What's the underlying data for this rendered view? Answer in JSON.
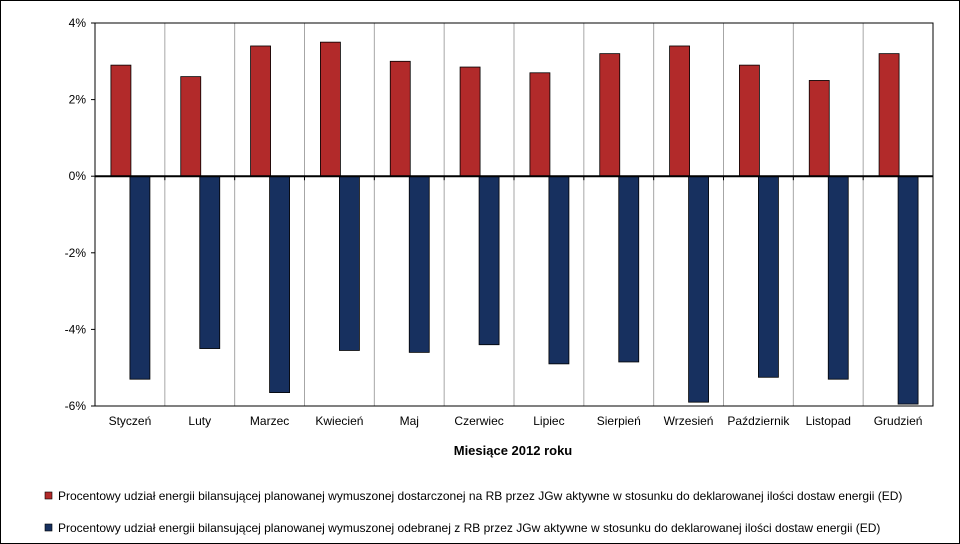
{
  "chart_data": {
    "type": "bar",
    "xlabel": "Miesiące 2012 roku",
    "ylabel": "",
    "ylim": [
      -0.06,
      0.04
    ],
    "yticks": [
      "4%",
      "2%",
      "0%",
      "-2%",
      "-4%",
      "-6%"
    ],
    "grid": "vertical",
    "legend_position": "bottom",
    "categories": [
      "Styczeń",
      "Luty",
      "Marzec",
      "Kwiecień",
      "Maj",
      "Czerwiec",
      "Lipiec",
      "Sierpień",
      "Wrzesień",
      "Październik",
      "Listopad",
      "Grudzień"
    ],
    "series": [
      {
        "name": "Procentowy udział energii bilansującej planowanej wymuszonej dostarczonej na RB przez JGw aktywne w stosunku do deklarowanej ilości dostaw energii (ED)",
        "color": "#b22a2a",
        "values": [
          0.029,
          0.026,
          0.034,
          0.035,
          0.03,
          0.0285,
          0.027,
          0.032,
          0.034,
          0.029,
          0.025,
          0.032
        ]
      },
      {
        "name": "Procentowy udział energii bilansującej planowanej wymuszonej odebranej z RB przez JGw aktywne w stosunku do deklarowanej ilości dostaw energii (ED)",
        "color": "#17305f",
        "values": [
          -0.053,
          -0.045,
          -0.0565,
          -0.0455,
          -0.046,
          -0.044,
          -0.049,
          -0.0485,
          -0.059,
          -0.0525,
          -0.053,
          -0.0595
        ]
      }
    ]
  }
}
